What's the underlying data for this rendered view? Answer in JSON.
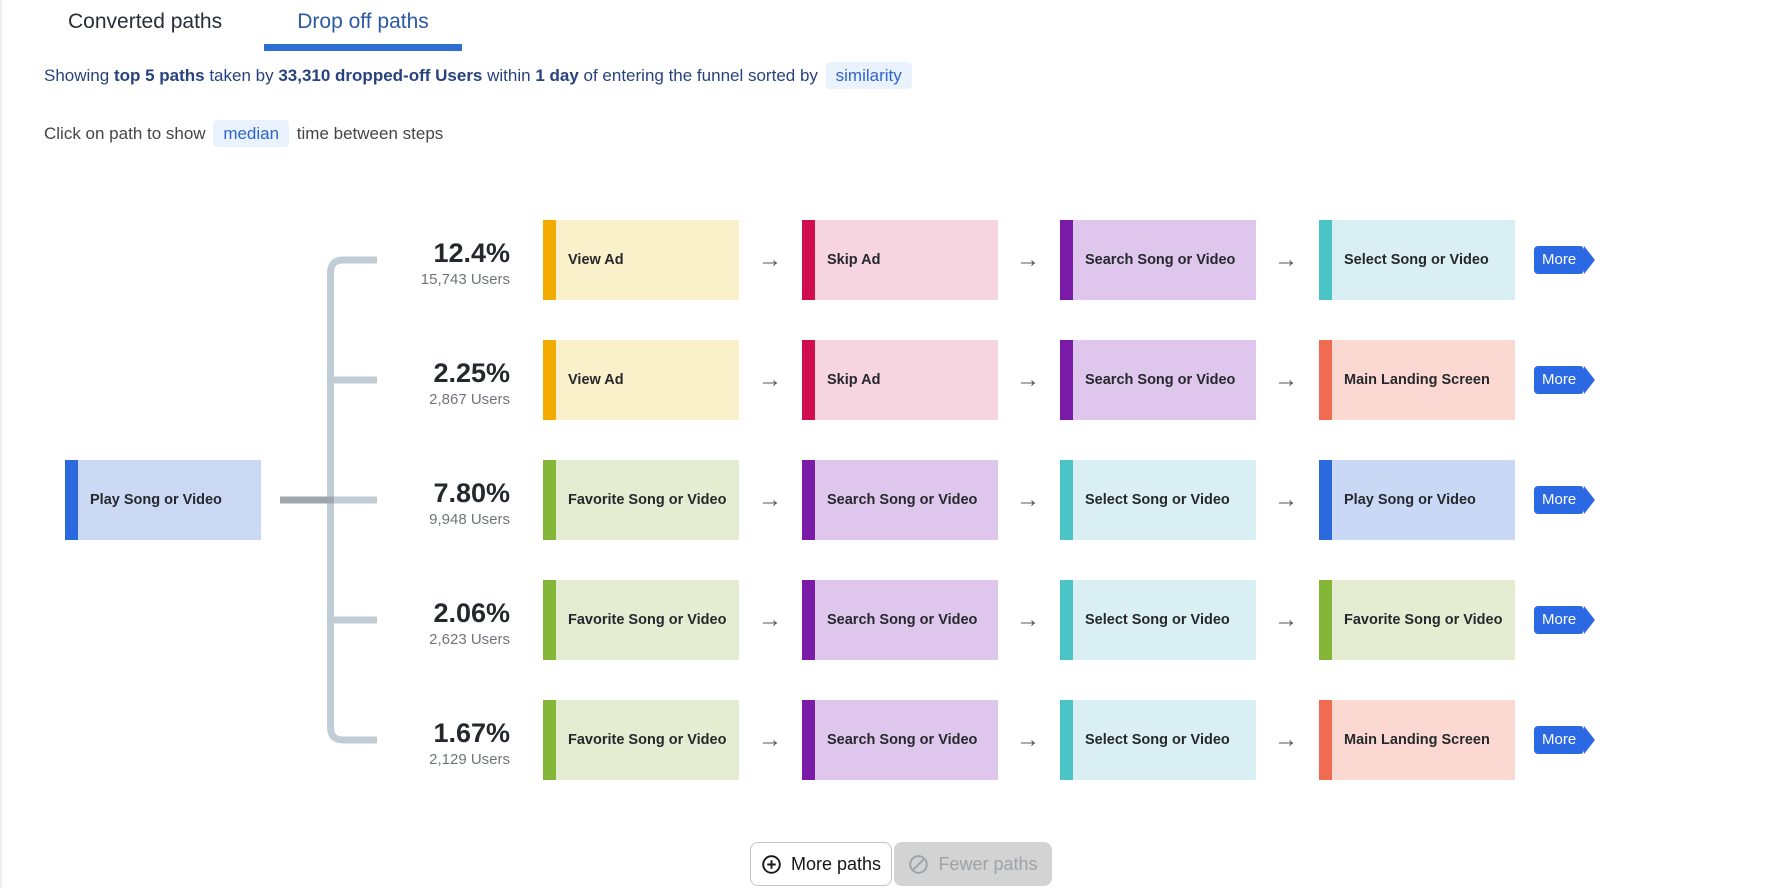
{
  "tabs": [
    {
      "label": "Converted paths",
      "active": false
    },
    {
      "label": "Drop off paths",
      "active": true
    }
  ],
  "subtitle": {
    "segments": [
      {
        "text": "Showing ",
        "style": "normal"
      },
      {
        "text": "top 5 paths",
        "style": "bold"
      },
      {
        "text": " taken by ",
        "style": "normal"
      },
      {
        "text": "33,310 dropped-off Users",
        "style": "bold"
      },
      {
        "text": " within ",
        "style": "normal"
      },
      {
        "text": "1 day",
        "style": "bold"
      },
      {
        "text": " of entering the funnel sorted by ",
        "style": "normal"
      },
      {
        "text": "similarity",
        "style": "pill"
      }
    ]
  },
  "hint": {
    "segments": [
      {
        "text": "Click on path to show ",
        "style": "normal"
      },
      {
        "text": "median",
        "style": "pill"
      },
      {
        "text": " time between steps",
        "style": "normal"
      }
    ]
  },
  "entry": {
    "label": "Play Song or Video",
    "color": "blue"
  },
  "paths": [
    {
      "percent": "12.4%",
      "users": "15,743 Users",
      "steps": [
        {
          "label": "View Ad",
          "color": "amber"
        },
        {
          "label": "Skip Ad",
          "color": "crimson"
        },
        {
          "label": "Search Song or Video",
          "color": "purple"
        },
        {
          "label": "Select Song or Video",
          "color": "teal"
        }
      ]
    },
    {
      "percent": "2.25%",
      "users": "2,867 Users",
      "steps": [
        {
          "label": "View Ad",
          "color": "amber"
        },
        {
          "label": "Skip Ad",
          "color": "crimson"
        },
        {
          "label": "Search Song or Video",
          "color": "purple"
        },
        {
          "label": "Main Landing Screen",
          "color": "salmon"
        }
      ]
    },
    {
      "percent": "7.80%",
      "users": "9,948 Users",
      "steps": [
        {
          "label": "Favorite Song or Video",
          "color": "green"
        },
        {
          "label": "Search Song or Video",
          "color": "purple"
        },
        {
          "label": "Select Song or Video",
          "color": "teal"
        },
        {
          "label": "Play Song or Video",
          "color": "blue"
        }
      ]
    },
    {
      "percent": "2.06%",
      "users": "2,623 Users",
      "steps": [
        {
          "label": "Favorite Song or Video",
          "color": "green"
        },
        {
          "label": "Search Song or Video",
          "color": "purple"
        },
        {
          "label": "Select Song or Video",
          "color": "teal"
        },
        {
          "label": "Favorite Song or Video",
          "color": "green"
        }
      ]
    },
    {
      "percent": "1.67%",
      "users": "2,129 Users",
      "steps": [
        {
          "label": "Favorite Song or Video",
          "color": "green"
        },
        {
          "label": "Search Song or Video",
          "color": "purple"
        },
        {
          "label": "Select Song or Video",
          "color": "teal"
        },
        {
          "label": "Main Landing Screen",
          "color": "salmon"
        }
      ]
    }
  ],
  "more_label": "More",
  "footer": {
    "more_paths": "More paths",
    "fewer_paths": "Fewer paths"
  },
  "icons": {
    "arrow": "→"
  },
  "colors": {
    "amber": {
      "accent": "#F2AC00",
      "bg": "#FAF0CA"
    },
    "crimson": {
      "accent": "#D00D4D",
      "bg": "#F6D5E0"
    },
    "purple": {
      "accent": "#7A1CA8",
      "bg": "#DFC6ED"
    },
    "teal": {
      "accent": "#4AC4C6",
      "bg": "#D9EFF4"
    },
    "green": {
      "accent": "#84B637",
      "bg": "#E4EDD1"
    },
    "salmon": {
      "accent": "#F16A52",
      "bg": "#FBD9D2"
    },
    "blue": {
      "accent": "#2C68DE",
      "bg": "#C9D9F5"
    },
    "tab_underline": "#2e6fd2",
    "more_tag": "#2b69e4",
    "bracket_light": "#c1cdd6",
    "bracket_dark": "#9fa7ae"
  }
}
